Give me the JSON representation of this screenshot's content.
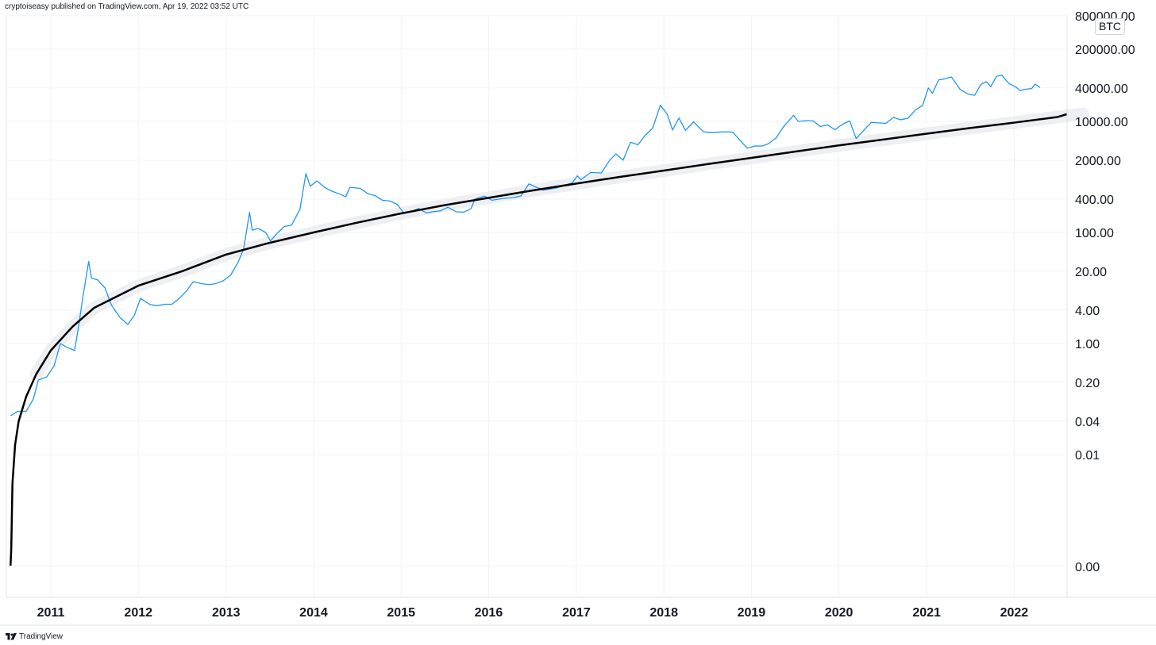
{
  "header": {
    "published": "cryptoiseasy published on TradingView.com, Apr 19, 2022 03:52 UTC"
  },
  "footer": {
    "brand": "TradingView",
    "logo_icon": "tradingview-logo-icon"
  },
  "colors": {
    "price": "#2196f3",
    "model": "#000000",
    "band": "#eeeff3",
    "grid": "#f0f3fa",
    "axis": "#e0e3eb"
  },
  "chart_data": {
    "type": "line",
    "title": "",
    "xlabel": "",
    "ylabel": "",
    "y_scale": "log",
    "grid": true,
    "symbol_badge": "BTC",
    "x_ticks": [
      "2011",
      "2012",
      "2013",
      "2014",
      "2015",
      "2016",
      "2017",
      "2018",
      "2019",
      "2020",
      "2021",
      "2022"
    ],
    "y_ticks": [
      "800000.00",
      "200000.00",
      "40000.00",
      "10000.00",
      "2000.00",
      "400.00",
      "100.00",
      "20.00",
      "4.00",
      "1.00",
      "0.20",
      "0.04",
      "0.01",
      "0.00"
    ],
    "series": [
      {
        "values": [
          [
            "2010-07-17",
            0.05
          ],
          [
            "2010-08-15",
            0.06
          ],
          [
            "2010-09-20",
            0.06
          ],
          [
            "2010-10-20",
            0.1
          ],
          [
            "2010-11-10",
            0.22
          ],
          [
            "2010-12-15",
            0.25
          ],
          [
            "2011-01-15",
            0.4
          ],
          [
            "2011-02-10",
            1.0
          ],
          [
            "2011-03-10",
            0.85
          ],
          [
            "2011-04-10",
            0.75
          ],
          [
            "2011-04-25",
            1.8
          ],
          [
            "2011-05-15",
            7.0
          ],
          [
            "2011-06-08",
            30.0
          ],
          [
            "2011-06-20",
            15.0
          ],
          [
            "2011-07-15",
            14.0
          ],
          [
            "2011-08-15",
            10.0
          ],
          [
            "2011-09-10",
            5.0
          ],
          [
            "2011-10-15",
            3.0
          ],
          [
            "2011-11-18",
            2.2
          ],
          [
            "2011-12-15",
            3.2
          ],
          [
            "2012-01-10",
            6.5
          ],
          [
            "2012-02-20",
            5.0
          ],
          [
            "2012-03-20",
            4.8
          ],
          [
            "2012-04-20",
            5.1
          ],
          [
            "2012-05-20",
            5.1
          ],
          [
            "2012-06-20",
            6.5
          ],
          [
            "2012-07-20",
            8.8
          ],
          [
            "2012-08-17",
            13.0
          ],
          [
            "2012-09-20",
            12.0
          ],
          [
            "2012-10-20",
            11.5
          ],
          [
            "2012-11-20",
            12.0
          ],
          [
            "2012-12-20",
            13.5
          ],
          [
            "2013-01-20",
            17.0
          ],
          [
            "2013-02-20",
            29.0
          ],
          [
            "2013-03-15",
            50.0
          ],
          [
            "2013-04-09",
            230.0
          ],
          [
            "2013-04-20",
            110.0
          ],
          [
            "2013-05-15",
            118.0
          ],
          [
            "2013-06-15",
            100.0
          ],
          [
            "2013-07-05",
            70.0
          ],
          [
            "2013-08-01",
            96.0
          ],
          [
            "2013-09-01",
            128.0
          ],
          [
            "2013-10-01",
            135.0
          ],
          [
            "2013-11-05",
            260.0
          ],
          [
            "2013-11-30",
            1150.0
          ],
          [
            "2013-12-18",
            680.0
          ],
          [
            "2014-01-15",
            850.0
          ],
          [
            "2014-02-15",
            650.0
          ],
          [
            "2014-03-15",
            560.0
          ],
          [
            "2014-04-15",
            500.0
          ],
          [
            "2014-05-15",
            440.0
          ],
          [
            "2014-06-01",
            650.0
          ],
          [
            "2014-07-15",
            620.0
          ],
          [
            "2014-08-15",
            500.0
          ],
          [
            "2014-09-15",
            460.0
          ],
          [
            "2014-10-15",
            380.0
          ],
          [
            "2014-11-15",
            370.0
          ],
          [
            "2014-12-15",
            320.0
          ],
          [
            "2015-01-14",
            220.0
          ],
          [
            "2015-02-15",
            240.0
          ],
          [
            "2015-03-15",
            270.0
          ],
          [
            "2015-04-15",
            225.0
          ],
          [
            "2015-05-15",
            237.0
          ],
          [
            "2015-06-15",
            245.0
          ],
          [
            "2015-07-15",
            285.0
          ],
          [
            "2015-08-20",
            235.0
          ],
          [
            "2015-09-20",
            232.0
          ],
          [
            "2015-10-20",
            270.0
          ],
          [
            "2015-11-05",
            400.0
          ],
          [
            "2015-12-15",
            450.0
          ],
          [
            "2016-01-15",
            380.0
          ],
          [
            "2016-02-15",
            400.0
          ],
          [
            "2016-03-15",
            415.0
          ],
          [
            "2016-04-15",
            425.0
          ],
          [
            "2016-05-15",
            455.0
          ],
          [
            "2016-06-17",
            750.0
          ],
          [
            "2016-07-15",
            660.0
          ],
          [
            "2016-08-15",
            580.0
          ],
          [
            "2016-09-15",
            605.0
          ],
          [
            "2016-10-15",
            640.0
          ],
          [
            "2016-11-15",
            710.0
          ],
          [
            "2016-12-15",
            780.0
          ],
          [
            "2017-01-05",
            1050.0
          ],
          [
            "2017-01-20",
            890.0
          ],
          [
            "2017-03-01",
            1200.0
          ],
          [
            "2017-04-15",
            1180.0
          ],
          [
            "2017-05-20",
            2000.0
          ],
          [
            "2017-06-15",
            2600.0
          ],
          [
            "2017-07-15",
            2000.0
          ],
          [
            "2017-08-15",
            4200.0
          ],
          [
            "2017-09-15",
            3800.0
          ],
          [
            "2017-10-15",
            5600.0
          ],
          [
            "2017-11-15",
            7500.0
          ],
          [
            "2017-12-17",
            19500.0
          ],
          [
            "2018-01-15",
            13500.0
          ],
          [
            "2018-02-06",
            7000.0
          ],
          [
            "2018-03-05",
            11500.0
          ],
          [
            "2018-04-01",
            6900.0
          ],
          [
            "2018-05-05",
            9800.0
          ],
          [
            "2018-06-15",
            6500.0
          ],
          [
            "2018-07-15",
            6300.0
          ],
          [
            "2018-08-15",
            6400.0
          ],
          [
            "2018-09-15",
            6500.0
          ],
          [
            "2018-10-15",
            6400.0
          ],
          [
            "2018-11-20",
            4300.0
          ],
          [
            "2018-12-15",
            3300.0
          ],
          [
            "2019-01-15",
            3600.0
          ],
          [
            "2019-02-15",
            3600.0
          ],
          [
            "2019-03-15",
            4000.0
          ],
          [
            "2019-04-15",
            5100.0
          ],
          [
            "2019-05-15",
            8000.0
          ],
          [
            "2019-06-26",
            12900.0
          ],
          [
            "2019-07-15",
            10000.0
          ],
          [
            "2019-08-15",
            10300.0
          ],
          [
            "2019-09-15",
            10200.0
          ],
          [
            "2019-10-15",
            8100.0
          ],
          [
            "2019-11-15",
            8600.0
          ],
          [
            "2019-12-15",
            7100.0
          ],
          [
            "2020-01-15",
            8800.0
          ],
          [
            "2020-02-15",
            10200.0
          ],
          [
            "2020-03-13",
            4900.0
          ],
          [
            "2020-04-15",
            7000.0
          ],
          [
            "2020-05-15",
            9600.0
          ],
          [
            "2020-06-15",
            9400.0
          ],
          [
            "2020-07-15",
            9200.0
          ],
          [
            "2020-08-15",
            11800.0
          ],
          [
            "2020-09-15",
            10700.0
          ],
          [
            "2020-10-15",
            11400.0
          ],
          [
            "2020-11-15",
            16000.0
          ],
          [
            "2020-12-15",
            19400.0
          ],
          [
            "2021-01-08",
            40000.0
          ],
          [
            "2021-01-25",
            32000.0
          ],
          [
            "2021-02-20",
            56000.0
          ],
          [
            "2021-03-15",
            58000.0
          ],
          [
            "2021-04-14",
            63000.0
          ],
          [
            "2021-05-20",
            38000.0
          ],
          [
            "2021-06-22",
            31000.0
          ],
          [
            "2021-07-20",
            29500.0
          ],
          [
            "2021-08-15",
            46000.0
          ],
          [
            "2021-09-07",
            52000.0
          ],
          [
            "2021-09-25",
            42000.0
          ],
          [
            "2021-10-20",
            65000.0
          ],
          [
            "2021-11-10",
            68000.0
          ],
          [
            "2021-12-10",
            48000.0
          ],
          [
            "2022-01-10",
            41000.0
          ],
          [
            "2022-01-25",
            36000.0
          ],
          [
            "2022-02-20",
            38000.0
          ],
          [
            "2022-03-15",
            39000.0
          ],
          [
            "2022-03-29",
            47000.0
          ],
          [
            "2022-04-19",
            40500.0
          ]
        ]
      },
      {
        "values": [
          [
            "2010-07-17",
            0.0001
          ],
          [
            "2010-07-20",
            0.0002
          ],
          [
            "2010-07-25",
            0.003
          ],
          [
            "2010-08-05",
            0.015
          ],
          [
            "2010-08-20",
            0.04
          ],
          [
            "2010-09-20",
            0.11
          ],
          [
            "2010-11-01",
            0.28
          ],
          [
            "2011-01-01",
            0.75
          ],
          [
            "2011-04-01",
            2.0
          ],
          [
            "2011-07-01",
            4.4
          ],
          [
            "2012-01-01",
            11.0
          ],
          [
            "2012-07-01",
            20.0
          ],
          [
            "2013-01-01",
            40.0
          ],
          [
            "2013-07-01",
            65.0
          ],
          [
            "2014-01-01",
            100.0
          ],
          [
            "2014-07-01",
            150.0
          ],
          [
            "2015-01-01",
            220.0
          ],
          [
            "2015-07-01",
            310.0
          ],
          [
            "2016-01-01",
            420.0
          ],
          [
            "2016-07-01",
            570.0
          ],
          [
            "2017-01-01",
            760.0
          ],
          [
            "2017-07-01",
            1000.0
          ],
          [
            "2018-01-01",
            1300.0
          ],
          [
            "2018-07-01",
            1700.0
          ],
          [
            "2019-01-01",
            2200.0
          ],
          [
            "2019-07-01",
            2850.0
          ],
          [
            "2020-01-01",
            3700.0
          ],
          [
            "2020-07-01",
            4700.0
          ],
          [
            "2021-01-01",
            6000.0
          ],
          [
            "2021-07-01",
            7600.0
          ],
          [
            "2022-01-01",
            9500.0
          ],
          [
            "2022-07-01",
            12000.0
          ],
          [
            "2022-10-15",
            13500.0
          ]
        ]
      }
    ]
  }
}
